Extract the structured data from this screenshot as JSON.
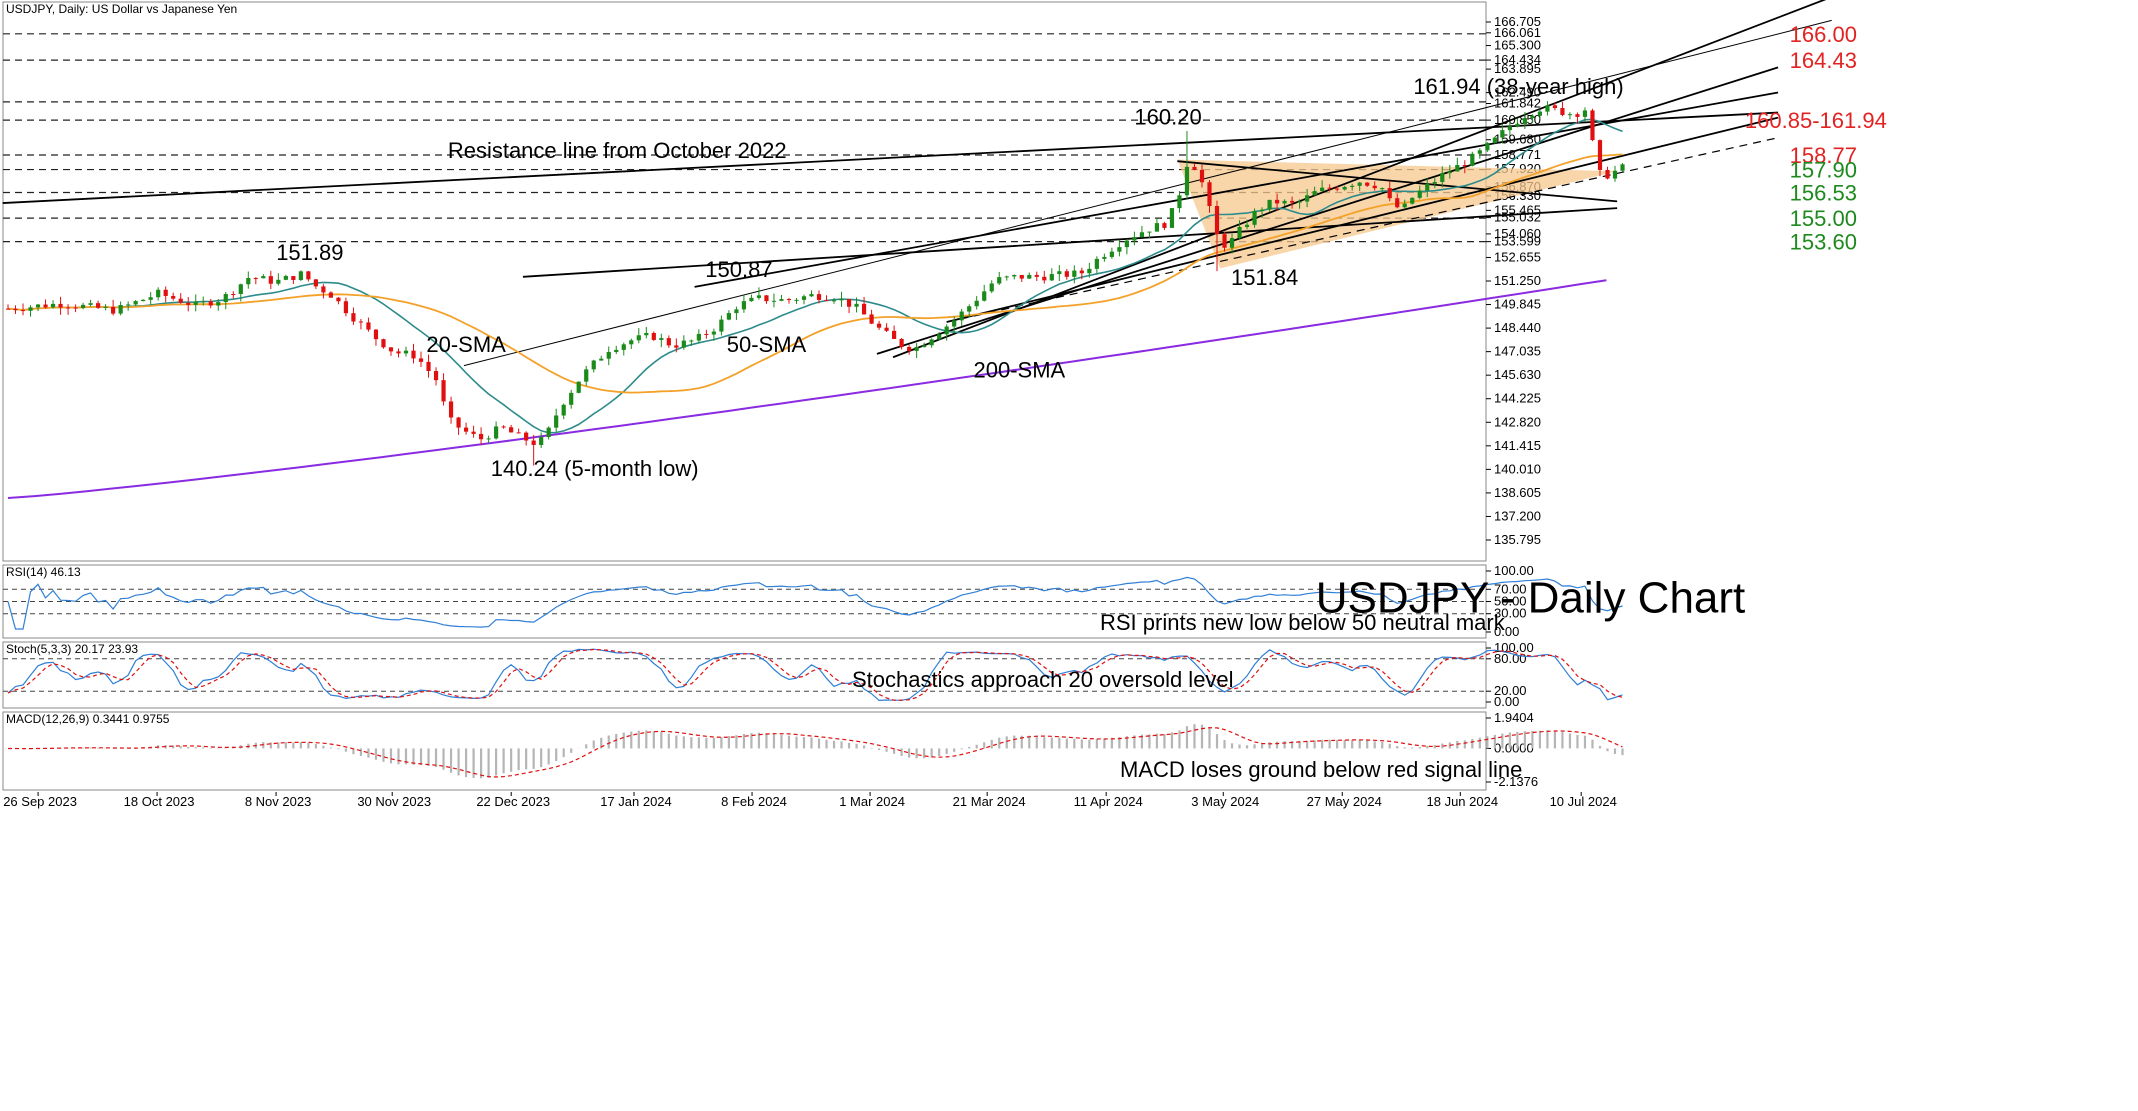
{
  "header": {
    "symbol_line": "USDJPY, Daily:  US Dollar vs Japanese Yen",
    "rsi_line": "RSI(14) 46.13",
    "stoch_line": "Stoch(5,3,3) 20.17 23.93",
    "macd_line": "MACD(12,26,9) 0.3441 0.9755"
  },
  "title": "USDJPY - Daily Chart",
  "colors": {
    "up": "#1a8a1a",
    "down": "#e01010",
    "sma20": "#2e8b8b",
    "sma50": "#f4a12a",
    "sma200": "#8a2be2",
    "red_level": "#e32222",
    "green_level": "#1e8a1e",
    "triangle_fill": "#f6c88e",
    "indicator": "#2f7fd6",
    "signal": "#e01010",
    "macd_bar": "#b5b5b5"
  },
  "x_labels": [
    "26 Sep 2023",
    "18 Oct 2023",
    "8 Nov 2023",
    "30 Nov 2023",
    "22 Dec 2023",
    "17 Jan 2024",
    "8 Feb 2024",
    "1 Mar 2024",
    "21 Mar 2024",
    "11 Apr 2024",
    "3 May 2024",
    "27 May 2024",
    "18 Jun 2024",
    "10 Jul 2024"
  ],
  "price_axis": {
    "ticks": [
      "166.705",
      "166.061",
      "165.300",
      "164.434",
      "163.895",
      "162.490",
      "161.842",
      "160.850",
      "159.680",
      "158.771",
      "157.920",
      "156.870",
      "156.330",
      "155.465",
      "155.032",
      "154.060",
      "153.599",
      "152.655",
      "151.250",
      "149.845",
      "148.440",
      "147.035",
      "145.630",
      "144.225",
      "142.820",
      "141.415",
      "140.010",
      "138.605",
      "137.200",
      "135.795"
    ]
  },
  "rsi_axis": {
    "ticks": [
      "100.00",
      "70.00",
      "50.00",
      "30.00",
      "0.00"
    ]
  },
  "stoch_axis": {
    "ticks": [
      "100.00",
      "80.00",
      "20.00",
      "0.00"
    ]
  },
  "macd_axis": {
    "ticks": [
      "1.9404",
      "0.0000",
      "-2.1376"
    ]
  },
  "levels": [
    {
      "value": 166.0,
      "label": "166.00",
      "kind": "resistance"
    },
    {
      "value": 164.43,
      "label": "164.43",
      "kind": "resistance"
    },
    {
      "value": 160.85,
      "label": "160.85-161.94",
      "kind": "resistance"
    },
    {
      "value": 161.94,
      "label": "",
      "kind": "resistance"
    },
    {
      "value": 158.77,
      "label": "158.77",
      "kind": "resistance"
    },
    {
      "value": 157.9,
      "label": "157.90",
      "kind": "support"
    },
    {
      "value": 156.53,
      "label": "156.53",
      "kind": "support"
    },
    {
      "value": 155.0,
      "label": "155.00",
      "kind": "support"
    },
    {
      "value": 153.6,
      "label": "153.60",
      "kind": "support"
    }
  ],
  "annotations": {
    "peak_high": "161.94 (38-year high)",
    "apr_high": "160.20",
    "resistance_line": "Resistance line from October 2022",
    "nov_high": "151.89",
    "feb_high": "150.87",
    "may_low": "151.84",
    "dec_low": "140.24 (5-month low)",
    "sma20": "20-SMA",
    "sma50": "50-SMA",
    "sma200": "200-SMA",
    "rsi_note": "RSI prints new low below 50 neutral mark",
    "stoch_note": "Stochastics approach 20 oversold level",
    "macd_note": "MACD loses ground below red signal line"
  },
  "chart_data": {
    "type": "candlestick",
    "title": "USDJPY - Daily Chart",
    "price_range": [
      135.0,
      167.2
    ],
    "key_prices": {
      "oct2023_high": 151.89,
      "dec2023_low": 140.24,
      "feb2024_high": 150.87,
      "apr2024_high": 160.2,
      "may2024_low": 151.84,
      "jun2024_high": 161.94,
      "last_close": 157.9
    },
    "indicators": {
      "rsi14_last": 46.13,
      "stoch_k_last": 20.17,
      "stoch_d_last": 23.93,
      "macd_last": 0.3441,
      "macd_signal_last": 0.9755
    }
  }
}
